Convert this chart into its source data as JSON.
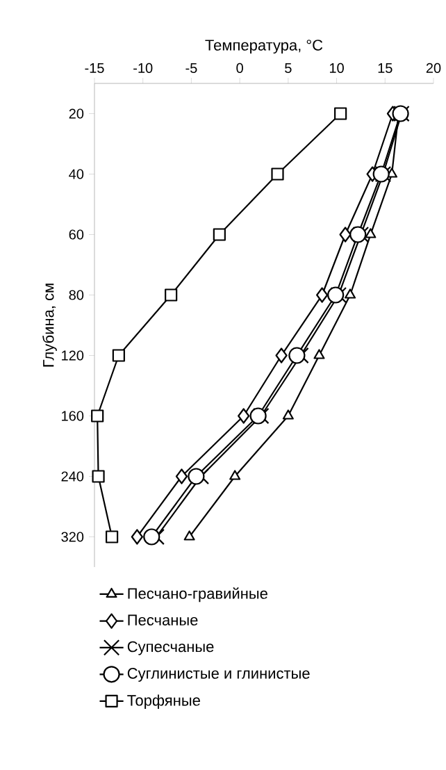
{
  "chart_data": {
    "type": "line",
    "orientation": "horizontal",
    "xlabel": "Температура, °C",
    "ylabel": "Глубина, см",
    "categories": [
      "20",
      "40",
      "60",
      "80",
      "120",
      "160",
      "240",
      "320"
    ],
    "xlim": [
      -15,
      20
    ],
    "xticks": [
      -15,
      -10,
      -5,
      0,
      5,
      10,
      15,
      20
    ],
    "legend": "bottom",
    "grid": false,
    "series": [
      {
        "name": "Песчано-гравийные",
        "color": "#000000",
        "marker": "triangle",
        "values": [
          16.4,
          15.7,
          13.5,
          11.4,
          8.2,
          5.0,
          -0.5,
          -5.2
        ]
      },
      {
        "name": "Песчаные",
        "color": "#000000",
        "marker": "diamond",
        "values": [
          15.8,
          13.7,
          10.9,
          8.5,
          4.3,
          0.4,
          -6.0,
          -10.6
        ]
      },
      {
        "name": "Супесчаные",
        "color": "#000000",
        "marker": "cross",
        "values": [
          16.7,
          14.8,
          12.5,
          10.2,
          6.3,
          2.2,
          -4.0,
          -8.6
        ]
      },
      {
        "name": "Суглинистые и глинистые",
        "color": "#000000",
        "marker": "circle",
        "values": [
          16.6,
          14.6,
          12.2,
          9.9,
          5.9,
          1.9,
          -4.5,
          -9.1
        ]
      },
      {
        "name": "Торфяные",
        "color": "#000000",
        "marker": "square",
        "values": [
          10.4,
          3.9,
          -2.1,
          -7.1,
          -12.5,
          -14.7,
          -14.6,
          -13.2
        ]
      }
    ]
  }
}
